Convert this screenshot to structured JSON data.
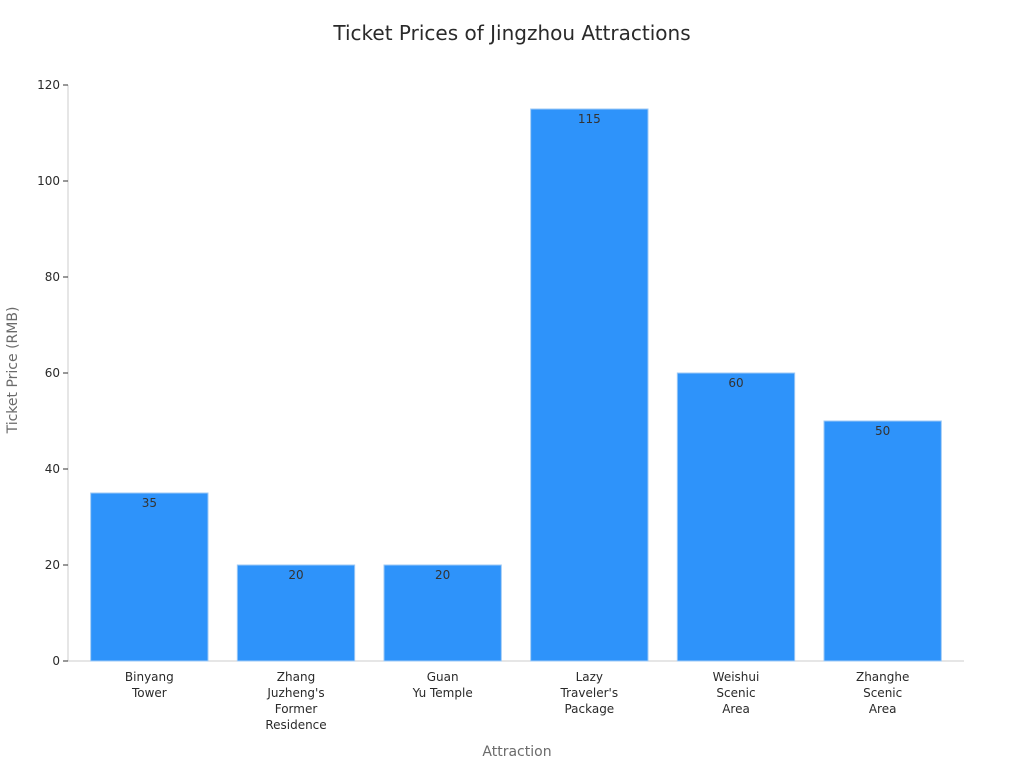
{
  "chart_data": {
    "type": "bar",
    "title": "Ticket Prices of Jingzhou Attractions",
    "xlabel": "Attraction",
    "ylabel": "Ticket Price (RMB)",
    "categories": [
      [
        "Binyang",
        "Tower"
      ],
      [
        "Zhang",
        "Juzheng's",
        "Former",
        "Residence"
      ],
      [
        "Guan",
        "Yu Temple"
      ],
      [
        "Lazy",
        "Traveler's",
        "Package"
      ],
      [
        "Weishui",
        "Scenic",
        "Area"
      ],
      [
        "Zhanghe",
        "Scenic",
        "Area"
      ]
    ],
    "values": [
      35,
      20,
      20,
      115,
      60,
      50
    ],
    "data_labels": [
      "35",
      "20",
      "20",
      "115",
      "60",
      "50"
    ],
    "ylim": [
      0,
      120
    ],
    "yticks": [
      0,
      20,
      40,
      60,
      80,
      100,
      120
    ],
    "grid": false,
    "legend": "none",
    "colors": {
      "bar": "#2e93fa",
      "bar_edge": "#9ec9f5",
      "axis": "#cccccc",
      "tick": "#333333"
    }
  }
}
